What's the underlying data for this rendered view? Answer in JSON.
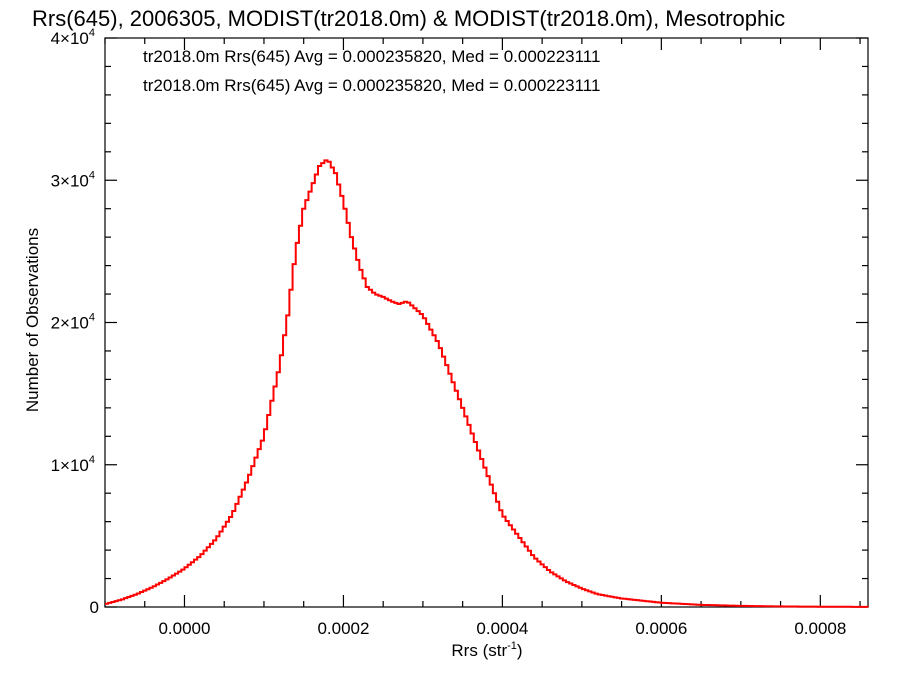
{
  "chart_data": {
    "type": "line",
    "title": "Rrs(645), 2006305, MODIST(tr2018.0m) & MODIST(tr2018.0m), Mesotrophic",
    "xlabel": "Rrs (str",
    "xlabel_sup": "-1",
    "xlabel_end": ")",
    "ylabel": "Number of Observations",
    "xlim": [
      -0.0001,
      0.00086
    ],
    "ylim": [
      0,
      40000
    ],
    "x_ticks": [
      {
        "value": 0.0,
        "label": "0.0000"
      },
      {
        "value": 0.0002,
        "label": "0.0002"
      },
      {
        "value": 0.0004,
        "label": "0.0004"
      },
      {
        "value": 0.0006,
        "label": "0.0006"
      },
      {
        "value": 0.0008,
        "label": "0.0008"
      }
    ],
    "y_ticks": [
      {
        "value": 0,
        "mant": "0",
        "exp": ""
      },
      {
        "value": 10000,
        "mant": "1×10",
        "exp": "4"
      },
      {
        "value": 20000,
        "mant": "2×10",
        "exp": "4"
      },
      {
        "value": 30000,
        "mant": "3×10",
        "exp": "4"
      },
      {
        "value": 40000,
        "mant": "4×10",
        "exp": "4"
      }
    ],
    "legend": [
      {
        "text": "tr2018.0m Rrs(645) Avg = 0.000235820, Med = 0.000223111",
        "color": "#000000"
      },
      {
        "text": "tr2018.0m Rrs(645) Avg = 0.000235820, Med = 0.000223111",
        "color": "#ff0000"
      }
    ],
    "legend_position": "top-left",
    "grid": false,
    "step": true,
    "series": [
      {
        "color": "#ff0000",
        "x": [
          -0.0001,
          -8e-05,
          -6e-05,
          -4e-05,
          -2e-05,
          0.0,
          2e-05,
          4e-05,
          6e-05,
          8e-05,
          0.0001,
          0.00011,
          0.00012,
          0.00013,
          0.00014,
          0.00015,
          0.00016,
          0.00017,
          0.00018,
          0.00019,
          0.0002,
          0.00021,
          0.00022,
          0.00023,
          0.00024,
          0.00025,
          0.00026,
          0.00027,
          0.00028,
          0.00029,
          0.0003,
          0.00031,
          0.00032,
          0.00033,
          0.00034,
          0.00035,
          0.00036,
          0.00037,
          0.00038,
          0.00039,
          0.0004,
          0.00042,
          0.00044,
          0.00046,
          0.00048,
          0.0005,
          0.00052,
          0.00055,
          0.0006,
          0.00065,
          0.0007,
          0.00075,
          0.0008,
          0.00086
        ],
        "y": [
          200,
          500,
          900,
          1400,
          2000,
          2700,
          3600,
          4800,
          6500,
          9000,
          12000,
          14500,
          17000,
          20500,
          25000,
          28000,
          29500,
          31000,
          31500,
          30500,
          28500,
          26000,
          24000,
          22500,
          22000,
          21800,
          21500,
          21300,
          21500,
          21000,
          20500,
          19500,
          18500,
          17000,
          15500,
          14000,
          12500,
          11000,
          9500,
          8000,
          6500,
          5000,
          3500,
          2500,
          1800,
          1300,
          900,
          600,
          300,
          150,
          80,
          40,
          20,
          10
        ]
      }
    ]
  }
}
